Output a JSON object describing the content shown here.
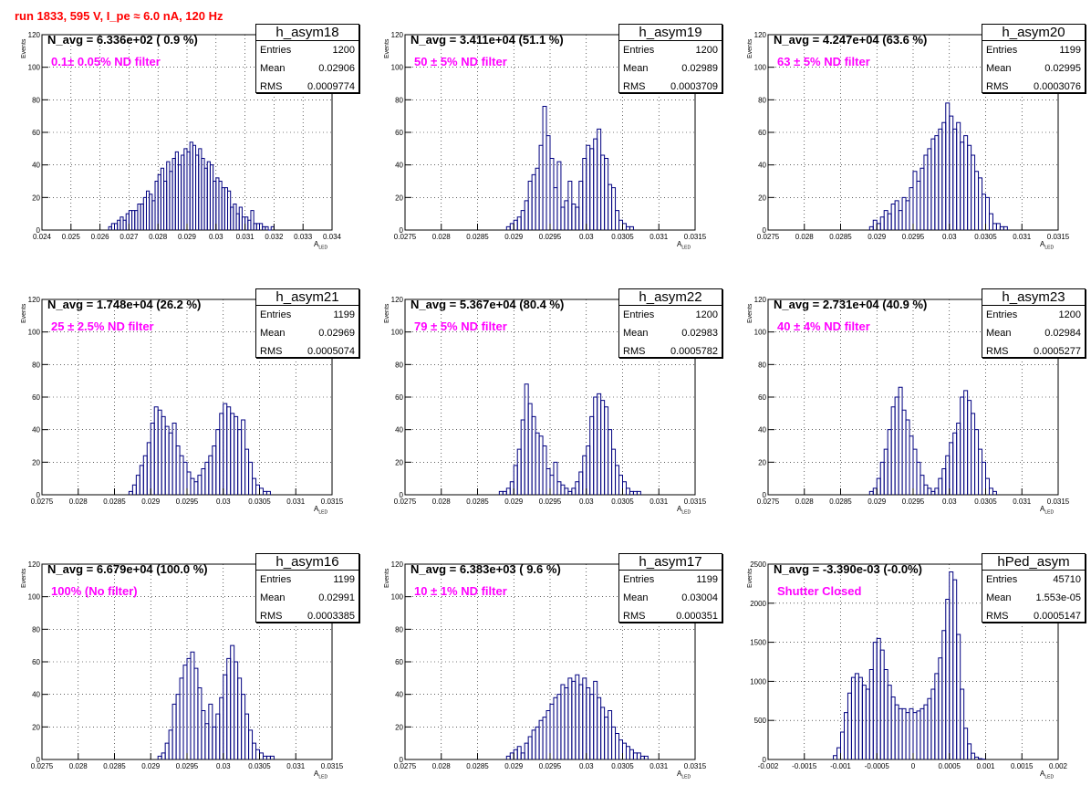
{
  "title": "run 1833,   595 V, I_pe ≈ 6.0 nA, 120 Hz",
  "axis": {
    "xlabel_main": "A",
    "xlabel_sub": "LED",
    "ylabel": "Events"
  },
  "stat_labels": {
    "entries": "Entries",
    "mean": "Mean",
    "rms": "RMS"
  },
  "colors": {
    "title": "#ff0000",
    "annotation": "#ff00ff",
    "histogram": "#000080"
  },
  "chart_data": [
    {
      "type": "bar",
      "name": "h_asym18",
      "navg": "N_avg = 6.336e+02 ( 0.9 %)",
      "filter": "0.1± 0.05% ND filter",
      "stats": {
        "entries": "1200",
        "mean": "0.02906",
        "rms": "0.0009774"
      },
      "xlim": [
        0.024,
        0.034
      ],
      "ylim": [
        0,
        120
      ],
      "xticks": [
        0.024,
        0.025,
        0.026,
        0.027,
        0.028,
        0.029,
        0.03,
        0.031,
        0.032,
        0.033,
        0.034
      ],
      "xtick_labels": [
        "0.024",
        "0.025",
        "0.026",
        "0.027",
        "0.028",
        "0.029",
        "0.03",
        "0.031",
        "0.032",
        "0.033",
        "0.034"
      ],
      "yticks": [
        0,
        20,
        40,
        60,
        80,
        100,
        120
      ],
      "ytick_labels": [
        "0",
        "20",
        "40",
        "60",
        "80",
        "100",
        "120"
      ],
      "grid": true,
      "x": [
        0.0263,
        0.0264,
        0.0265,
        0.0266,
        0.0267,
        0.0268,
        0.0269,
        0.027,
        0.0271,
        0.0272,
        0.0273,
        0.0274,
        0.0275,
        0.0276,
        0.0277,
        0.0278,
        0.0279,
        0.028,
        0.0281,
        0.0282,
        0.0283,
        0.0284,
        0.0285,
        0.0286,
        0.0287,
        0.0288,
        0.0289,
        0.029,
        0.0291,
        0.0292,
        0.0293,
        0.0294,
        0.0295,
        0.0296,
        0.0297,
        0.0298,
        0.0299,
        0.03,
        0.0301,
        0.0302,
        0.0303,
        0.0304,
        0.0305,
        0.0306,
        0.0307,
        0.0308,
        0.0309,
        0.031,
        0.0311,
        0.0312,
        0.0313,
        0.0314,
        0.0315,
        0.0316,
        0.0317,
        0.0318,
        0.0319
      ],
      "values": [
        2,
        4,
        4,
        6,
        8,
        6,
        10,
        12,
        12,
        12,
        16,
        16,
        20,
        24,
        22,
        18,
        30,
        34,
        38,
        30,
        42,
        36,
        44,
        48,
        40,
        46,
        50,
        48,
        54,
        52,
        46,
        50,
        44,
        38,
        42,
        40,
        30,
        32,
        30,
        26,
        26,
        24,
        14,
        16,
        10,
        14,
        8,
        8,
        6,
        12,
        4,
        4,
        4,
        2,
        2,
        0,
        2
      ]
    },
    {
      "type": "bar",
      "name": "h_asym19",
      "navg": "N_avg = 3.411e+04 (51.1 %)",
      "filter": "50 ± 5% ND filter",
      "stats": {
        "entries": "1200",
        "mean": "0.02989",
        "rms": "0.0003709"
      },
      "xlim": [
        0.0275,
        0.0315
      ],
      "ylim": [
        0,
        120
      ],
      "xticks": [
        0.0275,
        0.028,
        0.0285,
        0.029,
        0.0295,
        0.03,
        0.0305,
        0.031,
        0.0315
      ],
      "xtick_labels": [
        "0.0275",
        "0.028",
        "0.0285",
        "0.029",
        "0.0295",
        "0.03",
        "0.0305",
        "0.031",
        "0.0315"
      ],
      "yticks": [
        0,
        20,
        40,
        60,
        80,
        100,
        120
      ],
      "ytick_labels": [
        "0",
        "20",
        "40",
        "60",
        "80",
        "100",
        "120"
      ],
      "grid": true,
      "x": [
        0.0289,
        0.02895,
        0.029,
        0.02905,
        0.0291,
        0.02915,
        0.0292,
        0.02925,
        0.0293,
        0.02935,
        0.0294,
        0.02945,
        0.0295,
        0.02955,
        0.0296,
        0.02965,
        0.0297,
        0.02975,
        0.0298,
        0.02985,
        0.0299,
        0.02995,
        0.03,
        0.03005,
        0.0301,
        0.03015,
        0.0302,
        0.03025,
        0.0303,
        0.03035,
        0.0304,
        0.03045,
        0.0305,
        0.03055,
        0.0306
      ],
      "values": [
        2,
        4,
        6,
        8,
        12,
        18,
        30,
        34,
        38,
        52,
        76,
        58,
        44,
        26,
        42,
        14,
        18,
        30,
        16,
        14,
        30,
        44,
        52,
        50,
        56,
        62,
        46,
        44,
        28,
        26,
        12,
        6,
        4,
        2,
        2
      ]
    },
    {
      "type": "bar",
      "name": "h_asym20",
      "navg": "N_avg = 4.247e+04 (63.6 %)",
      "filter": "63 ± 5% ND filter",
      "stats": {
        "entries": "1199",
        "mean": "0.02995",
        "rms": "0.0003076"
      },
      "xlim": [
        0.0275,
        0.0315
      ],
      "ylim": [
        0,
        120
      ],
      "xticks": [
        0.0275,
        0.028,
        0.0285,
        0.029,
        0.0295,
        0.03,
        0.0305,
        0.031,
        0.0315
      ],
      "xtick_labels": [
        "0.0275",
        "0.028",
        "0.0285",
        "0.029",
        "0.0295",
        "0.03",
        "0.0305",
        "0.031",
        "0.0315"
      ],
      "yticks": [
        0,
        20,
        40,
        60,
        80,
        100,
        120
      ],
      "ytick_labels": [
        "0",
        "20",
        "40",
        "60",
        "80",
        "100",
        "120"
      ],
      "grid": true,
      "x": [
        0.0289,
        0.02895,
        0.029,
        0.02905,
        0.0291,
        0.02915,
        0.0292,
        0.02925,
        0.0293,
        0.02935,
        0.0294,
        0.02945,
        0.0295,
        0.02955,
        0.0296,
        0.02965,
        0.0297,
        0.02975,
        0.0298,
        0.02985,
        0.0299,
        0.02995,
        0.03,
        0.03005,
        0.0301,
        0.03015,
        0.0302,
        0.03025,
        0.0303,
        0.03035,
        0.0304,
        0.03045,
        0.0305,
        0.03055,
        0.0306,
        0.03065,
        0.0307,
        0.03075
      ],
      "values": [
        2,
        6,
        4,
        8,
        12,
        10,
        16,
        18,
        12,
        20,
        18,
        26,
        36,
        30,
        38,
        46,
        50,
        56,
        58,
        62,
        66,
        78,
        70,
        62,
        66,
        54,
        58,
        52,
        46,
        36,
        32,
        22,
        20,
        10,
        4,
        4,
        2,
        2
      ]
    },
    {
      "type": "bar",
      "name": "h_asym21",
      "navg": "N_avg = 1.748e+04 (26.2 %)",
      "filter": "25 ± 2.5% ND filter",
      "stats": {
        "entries": "1199",
        "mean": "0.02969",
        "rms": "0.0005074"
      },
      "xlim": [
        0.0275,
        0.0315
      ],
      "ylim": [
        0,
        120
      ],
      "xticks": [
        0.0275,
        0.028,
        0.0285,
        0.029,
        0.0295,
        0.03,
        0.0305,
        0.031,
        0.0315
      ],
      "xtick_labels": [
        "0.0275",
        "0.028",
        "0.0285",
        "0.029",
        "0.0295",
        "0.03",
        "0.0305",
        "0.031",
        "0.0315"
      ],
      "yticks": [
        0,
        20,
        40,
        60,
        80,
        100,
        120
      ],
      "ytick_labels": [
        "0",
        "20",
        "40",
        "60",
        "80",
        "100",
        "120"
      ],
      "grid": true,
      "x": [
        0.0287,
        0.02875,
        0.0288,
        0.02885,
        0.0289,
        0.02895,
        0.029,
        0.02905,
        0.0291,
        0.02915,
        0.0292,
        0.02925,
        0.0293,
        0.02935,
        0.0294,
        0.02945,
        0.0295,
        0.02955,
        0.0296,
        0.02965,
        0.0297,
        0.02975,
        0.0298,
        0.02985,
        0.0299,
        0.02995,
        0.03,
        0.03005,
        0.0301,
        0.03015,
        0.0302,
        0.03025,
        0.0303,
        0.03035,
        0.0304,
        0.03045,
        0.0305,
        0.03055,
        0.0306
      ],
      "values": [
        2,
        6,
        12,
        18,
        24,
        32,
        44,
        54,
        52,
        48,
        42,
        38,
        44,
        30,
        24,
        20,
        14,
        10,
        8,
        12,
        16,
        20,
        24,
        30,
        40,
        50,
        56,
        54,
        50,
        48,
        40,
        46,
        28,
        20,
        10,
        6,
        4,
        2,
        2
      ]
    },
    {
      "type": "bar",
      "name": "h_asym22",
      "navg": "N_avg = 5.367e+04 (80.4 %)",
      "filter": "79 ± 5% ND filter",
      "stats": {
        "entries": "1200",
        "mean": "0.02983",
        "rms": "0.0005782"
      },
      "xlim": [
        0.0275,
        0.0315
      ],
      "ylim": [
        0,
        120
      ],
      "xticks": [
        0.0275,
        0.028,
        0.0285,
        0.029,
        0.0295,
        0.03,
        0.0305,
        0.031,
        0.0315
      ],
      "xtick_labels": [
        "0.0275",
        "0.028",
        "0.0285",
        "0.029",
        "0.0295",
        "0.03",
        "0.0305",
        "0.031",
        "0.0315"
      ],
      "yticks": [
        0,
        20,
        40,
        60,
        80,
        100,
        120
      ],
      "ytick_labels": [
        "0",
        "20",
        "40",
        "60",
        "80",
        "100",
        "120"
      ],
      "grid": true,
      "x": [
        0.0288,
        0.02885,
        0.0289,
        0.02895,
        0.029,
        0.02905,
        0.0291,
        0.02915,
        0.0292,
        0.02925,
        0.0293,
        0.02935,
        0.0294,
        0.02945,
        0.0295,
        0.02955,
        0.0296,
        0.02965,
        0.0297,
        0.02975,
        0.0298,
        0.02985,
        0.0299,
        0.02995,
        0.03,
        0.03005,
        0.0301,
        0.03015,
        0.0302,
        0.03025,
        0.0303,
        0.03035,
        0.0304,
        0.03045,
        0.0305,
        0.03055,
        0.0306,
        0.03065,
        0.0307
      ],
      "values": [
        2,
        2,
        4,
        8,
        18,
        28,
        46,
        68,
        56,
        48,
        38,
        36,
        30,
        16,
        12,
        20,
        8,
        6,
        4,
        2,
        4,
        8,
        14,
        24,
        30,
        48,
        60,
        62,
        58,
        54,
        40,
        28,
        18,
        12,
        8,
        4,
        2,
        2,
        2
      ]
    },
    {
      "type": "bar",
      "name": "h_asym23",
      "navg": "N_avg = 2.731e+04 (40.9 %)",
      "filter": "40 ± 4% ND filter",
      "stats": {
        "entries": "1200",
        "mean": "0.02984",
        "rms": "0.0005277"
      },
      "xlim": [
        0.0275,
        0.0315
      ],
      "ylim": [
        0,
        120
      ],
      "xticks": [
        0.0275,
        0.028,
        0.0285,
        0.029,
        0.0295,
        0.03,
        0.0305,
        0.031,
        0.0315
      ],
      "xtick_labels": [
        "0.0275",
        "0.028",
        "0.0285",
        "0.029",
        "0.0295",
        "0.03",
        "0.0305",
        "0.031",
        "0.0315"
      ],
      "yticks": [
        0,
        20,
        40,
        60,
        80,
        100,
        120
      ],
      "ytick_labels": [
        "0",
        "20",
        "40",
        "60",
        "80",
        "100",
        "120"
      ],
      "grid": true,
      "x": [
        0.0289,
        0.02895,
        0.029,
        0.02905,
        0.0291,
        0.02915,
        0.0292,
        0.02925,
        0.0293,
        0.02935,
        0.0294,
        0.02945,
        0.0295,
        0.02955,
        0.0296,
        0.02965,
        0.0297,
        0.02975,
        0.0298,
        0.02985,
        0.0299,
        0.02995,
        0.03,
        0.03005,
        0.0301,
        0.03015,
        0.0302,
        0.03025,
        0.0303,
        0.03035,
        0.0304,
        0.03045,
        0.0305,
        0.03055,
        0.0306
      ],
      "values": [
        2,
        4,
        10,
        20,
        28,
        40,
        54,
        60,
        66,
        52,
        46,
        36,
        28,
        20,
        12,
        6,
        4,
        2,
        4,
        10,
        16,
        24,
        32,
        38,
        44,
        60,
        64,
        58,
        50,
        40,
        28,
        20,
        10,
        4,
        2
      ]
    },
    {
      "type": "bar",
      "name": "h_asym16",
      "navg": "N_avg = 6.679e+04 (100.0 %)",
      "filter": "100% (No filter)",
      "stats": {
        "entries": "1199",
        "mean": "0.02991",
        "rms": "0.0003385"
      },
      "xlim": [
        0.0275,
        0.0315
      ],
      "ylim": [
        0,
        120
      ],
      "xticks": [
        0.0275,
        0.028,
        0.0285,
        0.029,
        0.0295,
        0.03,
        0.0305,
        0.031,
        0.0315
      ],
      "xtick_labels": [
        "0.0275",
        "0.028",
        "0.0285",
        "0.029",
        "0.0295",
        "0.03",
        "0.0305",
        "0.031",
        "0.0315"
      ],
      "yticks": [
        0,
        20,
        40,
        60,
        80,
        100,
        120
      ],
      "ytick_labels": [
        "0",
        "20",
        "40",
        "60",
        "80",
        "100",
        "120"
      ],
      "grid": true,
      "x": [
        0.0291,
        0.02915,
        0.0292,
        0.02925,
        0.0293,
        0.02935,
        0.0294,
        0.02945,
        0.0295,
        0.02955,
        0.0296,
        0.02965,
        0.0297,
        0.02975,
        0.0298,
        0.02985,
        0.0299,
        0.02995,
        0.03,
        0.03005,
        0.0301,
        0.03015,
        0.0302,
        0.03025,
        0.0303,
        0.03035,
        0.0304,
        0.03045,
        0.0305,
        0.03055,
        0.0306,
        0.03065
      ],
      "values": [
        2,
        4,
        10,
        18,
        34,
        40,
        50,
        58,
        62,
        66,
        56,
        44,
        30,
        22,
        34,
        20,
        28,
        38,
        52,
        62,
        70,
        60,
        50,
        40,
        28,
        18,
        10,
        6,
        4,
        2,
        2,
        2
      ]
    },
    {
      "type": "bar",
      "name": "h_asym17",
      "navg": "N_avg = 6.383e+03 ( 9.6 %)",
      "filter": "10 ± 1% ND filter",
      "stats": {
        "entries": "1199",
        "mean": "0.03004",
        "rms": "0.000351"
      },
      "xlim": [
        0.0275,
        0.0315
      ],
      "ylim": [
        0,
        120
      ],
      "xticks": [
        0.0275,
        0.028,
        0.0285,
        0.029,
        0.0295,
        0.03,
        0.0305,
        0.031,
        0.0315
      ],
      "xtick_labels": [
        "0.0275",
        "0.028",
        "0.0285",
        "0.029",
        "0.0295",
        "0.03",
        "0.0305",
        "0.031",
        "0.0315"
      ],
      "yticks": [
        0,
        20,
        40,
        60,
        80,
        100,
        120
      ],
      "ytick_labels": [
        "0",
        "20",
        "40",
        "60",
        "80",
        "100",
        "120"
      ],
      "grid": true,
      "x": [
        0.0289,
        0.02895,
        0.029,
        0.02905,
        0.0291,
        0.02915,
        0.0292,
        0.02925,
        0.0293,
        0.02935,
        0.0294,
        0.02945,
        0.0295,
        0.02955,
        0.0296,
        0.02965,
        0.0297,
        0.02975,
        0.0298,
        0.02985,
        0.0299,
        0.02995,
        0.03,
        0.03005,
        0.0301,
        0.03015,
        0.0302,
        0.03025,
        0.0303,
        0.03035,
        0.0304,
        0.03045,
        0.0305,
        0.03055,
        0.0306,
        0.03065,
        0.0307,
        0.03075,
        0.0308
      ],
      "values": [
        2,
        4,
        6,
        8,
        4,
        10,
        14,
        18,
        20,
        24,
        26,
        30,
        34,
        38,
        40,
        46,
        44,
        50,
        48,
        52,
        46,
        50,
        44,
        40,
        48,
        38,
        32,
        26,
        30,
        20,
        16,
        12,
        10,
        8,
        6,
        4,
        4,
        2,
        2
      ]
    },
    {
      "type": "bar",
      "name": "hPed_asym",
      "navg": "N_avg = -3.390e-03 (-0.0%)",
      "filter": "Shutter Closed",
      "stats": {
        "entries": "45710",
        "mean": "1.553e-05",
        "rms": "0.0005147"
      },
      "xlim": [
        -0.002,
        0.002
      ],
      "ylim": [
        0,
        2500
      ],
      "xticks": [
        -0.002,
        -0.0015,
        -0.001,
        -0.0005,
        0,
        0.0005,
        0.001,
        0.0015,
        0.002
      ],
      "xtick_labels": [
        "-0.002",
        "-0.0015",
        "-0.001",
        "-0.0005",
        "0",
        "0.0005",
        "0.001",
        "0.0015",
        "0.002"
      ],
      "yticks": [
        0,
        500,
        1000,
        1500,
        2000,
        2500
      ],
      "ytick_labels": [
        "0",
        "500",
        "1000",
        "1500",
        "2000",
        "2500"
      ],
      "grid": true,
      "x": [
        -0.0011,
        -0.00105,
        -0.001,
        -0.00095,
        -0.0009,
        -0.00085,
        -0.0008,
        -0.00075,
        -0.0007,
        -0.00065,
        -0.0006,
        -0.00055,
        -0.0005,
        -0.00045,
        -0.0004,
        -0.00035,
        -0.0003,
        -0.00025,
        -0.0002,
        -0.00015,
        -0.0001,
        -5e-05,
        0,
        5e-05,
        0.0001,
        0.00015,
        0.0002,
        0.00025,
        0.0003,
        0.00035,
        0.0004,
        0.00045,
        0.0005,
        0.00055,
        0.0006,
        0.00065,
        0.0007,
        0.00075,
        0.0008,
        0.00085,
        0.0009,
        0.00095
      ],
      "values": [
        50,
        150,
        350,
        600,
        850,
        1050,
        1100,
        1050,
        950,
        900,
        1150,
        1500,
        1550,
        1400,
        1150,
        950,
        800,
        700,
        650,
        650,
        600,
        650,
        600,
        620,
        650,
        700,
        780,
        900,
        1100,
        1300,
        1650,
        2050,
        2400,
        2300,
        1600,
        900,
        400,
        200,
        80,
        30,
        10,
        5
      ]
    }
  ]
}
